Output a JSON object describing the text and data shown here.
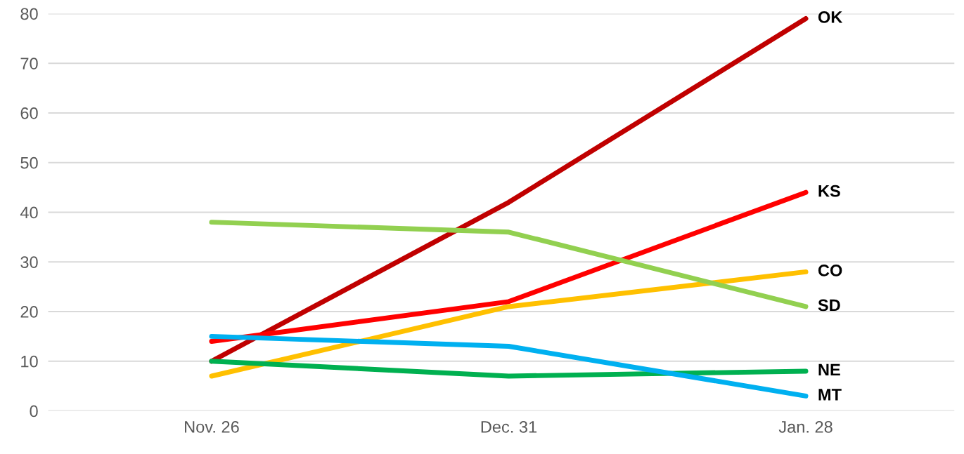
{
  "chart_data": {
    "type": "line",
    "categories": [
      "Nov. 26",
      "Dec. 31",
      "Jan. 28"
    ],
    "series": [
      {
        "name": "OK",
        "color": "#c00000",
        "values": [
          10,
          42,
          79
        ]
      },
      {
        "name": "KS",
        "color": "#ff0000",
        "values": [
          14,
          22,
          44
        ]
      },
      {
        "name": "CO",
        "color": "#ffc000",
        "values": [
          7,
          21,
          28
        ]
      },
      {
        "name": "SD",
        "color": "#92d050",
        "values": [
          38,
          36,
          21
        ]
      },
      {
        "name": "NE",
        "color": "#00b050",
        "values": [
          10,
          7,
          8
        ]
      },
      {
        "name": "MT",
        "color": "#00b0f0",
        "values": [
          15,
          13,
          3
        ]
      }
    ],
    "ylim": [
      0,
      80
    ],
    "yticks": [
      0,
      10,
      20,
      30,
      40,
      50,
      60,
      70,
      80
    ],
    "grid": "y",
    "legend": false,
    "marker": "none",
    "line_style": "solid"
  }
}
